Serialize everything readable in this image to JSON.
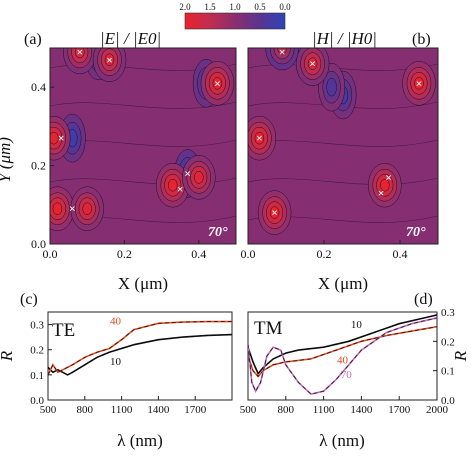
{
  "chart_data": [
    {
      "type": "heatmap",
      "panel_label": "(a)",
      "title": "|E| / |E0|",
      "angle_label": "70°",
      "xlabel": "X (μm)",
      "ylabel": "Y (μm)",
      "xlim": [
        0.0,
        0.5
      ],
      "ylim": [
        0.0,
        0.5
      ],
      "xticks": [
        "0.0",
        "0.2",
        "0.4"
      ],
      "yticks": [
        "0.0",
        "0.2",
        "0.4"
      ],
      "markers": [
        {
          "x": 0.08,
          "y": 0.49
        },
        {
          "x": 0.16,
          "y": 0.47
        },
        {
          "x": 0.45,
          "y": 0.41
        },
        {
          "x": 0.03,
          "y": 0.27
        },
        {
          "x": 0.37,
          "y": 0.18
        },
        {
          "x": 0.35,
          "y": 0.14
        },
        {
          "x": 0.06,
          "y": 0.09
        }
      ],
      "hotspots": [
        {
          "x": 0.08,
          "y": 0.49,
          "level": 1.8
        },
        {
          "x": 0.16,
          "y": 0.47,
          "level": 1.8
        },
        {
          "x": 0.45,
          "y": 0.41,
          "level": 2.0
        },
        {
          "x": 0.01,
          "y": 0.27,
          "level": 2.0
        },
        {
          "x": 0.02,
          "y": 0.09,
          "level": 2.0
        },
        {
          "x": 0.1,
          "y": 0.09,
          "level": 1.9
        },
        {
          "x": 0.33,
          "y": 0.15,
          "level": 2.0
        },
        {
          "x": 0.4,
          "y": 0.17,
          "level": 1.9
        }
      ],
      "coldspots": [
        {
          "x": 0.06,
          "y": 0.27,
          "level": 0.2
        },
        {
          "x": 0.37,
          "y": 0.18,
          "level": 0.1
        },
        {
          "x": 0.13,
          "y": 0.48,
          "level": 0.3
        },
        {
          "x": 0.42,
          "y": 0.41,
          "level": 0.2
        }
      ]
    },
    {
      "type": "heatmap",
      "panel_label": "(b)",
      "title": "|H| / |H0|",
      "angle_label": "70°",
      "xlabel": "X (μm)",
      "xlim": [
        0.0,
        0.5
      ],
      "ylim": [
        0.0,
        0.5
      ],
      "xticks": [
        "0.0",
        "0.2",
        "0.4"
      ],
      "markers": [
        {
          "x": 0.09,
          "y": 0.49
        },
        {
          "x": 0.17,
          "y": 0.46
        },
        {
          "x": 0.45,
          "y": 0.41
        },
        {
          "x": 0.03,
          "y": 0.27
        },
        {
          "x": 0.37,
          "y": 0.17
        },
        {
          "x": 0.35,
          "y": 0.13
        },
        {
          "x": 0.07,
          "y": 0.08
        }
      ],
      "hotspots": [
        {
          "x": 0.17,
          "y": 0.46,
          "level": 1.8
        },
        {
          "x": 0.45,
          "y": 0.41,
          "level": 2.0
        },
        {
          "x": 0.03,
          "y": 0.27,
          "level": 2.0
        },
        {
          "x": 0.36,
          "y": 0.15,
          "level": 2.0
        },
        {
          "x": 0.07,
          "y": 0.08,
          "level": 2.0
        },
        {
          "x": 0.09,
          "y": 0.5,
          "level": 1.5
        }
      ],
      "coldspots": [
        {
          "x": 0.25,
          "y": 0.38,
          "level": 0.3
        },
        {
          "x": 0.22,
          "y": 0.4,
          "level": 0.4
        }
      ]
    },
    {
      "type": "line",
      "panel_label": "(c)",
      "inset_label": "TE",
      "xlabel": "λ (nm)",
      "ylabel": "R",
      "xlim": [
        500,
        2000
      ],
      "ylim": [
        0,
        0.35
      ],
      "xticks": [
        "500",
        "800",
        "1100",
        "1400",
        "1700"
      ],
      "yticks": [
        "0.0",
        "0.1",
        "0.2",
        "0.3"
      ],
      "series": [
        {
          "name": "10",
          "x": [
            500,
            540,
            580,
            620,
            660,
            700,
            800,
            900,
            1000,
            1200,
            1400,
            1600,
            1800,
            2000
          ],
          "values": [
            0.13,
            0.11,
            0.12,
            0.11,
            0.1,
            0.11,
            0.14,
            0.17,
            0.19,
            0.22,
            0.24,
            0.25,
            0.257,
            0.26
          ]
        },
        {
          "name": "40",
          "x": [
            500,
            540,
            580,
            620,
            660,
            700,
            800,
            900,
            1000,
            1100,
            1200,
            1400,
            1600,
            1800,
            2000
          ],
          "values": [
            0.1,
            0.14,
            0.11,
            0.12,
            0.13,
            0.14,
            0.17,
            0.19,
            0.205,
            0.24,
            0.28,
            0.305,
            0.31,
            0.312,
            0.312
          ]
        }
      ]
    },
    {
      "type": "line",
      "panel_label": "(d)",
      "inset_label": "TM",
      "xlabel": "λ (nm)",
      "ylabel": "R",
      "xlim": [
        500,
        2000
      ],
      "ylim": [
        0,
        0.3
      ],
      "xticks": [
        "500",
        "800",
        "1100",
        "1400",
        "1700",
        "2000"
      ],
      "yticks": [
        "0.0",
        "0.1",
        "0.2",
        "0.3"
      ],
      "series": [
        {
          "name": "10",
          "x": [
            500,
            540,
            580,
            620,
            700,
            800,
            900,
            1100,
            1300,
            1500,
            1700,
            1900,
            2000
          ],
          "values": [
            0.18,
            0.13,
            0.09,
            0.11,
            0.14,
            0.16,
            0.17,
            0.18,
            0.2,
            0.23,
            0.26,
            0.28,
            0.29
          ]
        },
        {
          "name": "40",
          "x": [
            500,
            540,
            580,
            620,
            700,
            800,
            1000,
            1200,
            1400,
            1600,
            1800,
            2000
          ],
          "values": [
            0.15,
            0.1,
            0.08,
            0.1,
            0.12,
            0.13,
            0.14,
            0.17,
            0.2,
            0.22,
            0.235,
            0.25
          ]
        },
        {
          "name": "70",
          "x": [
            500,
            530,
            560,
            600,
            650,
            700,
            760,
            800,
            900,
            1000,
            1100,
            1200,
            1300,
            1400,
            1500,
            1600,
            1800,
            2000
          ],
          "values": [
            0.19,
            0.06,
            0.03,
            0.06,
            0.15,
            0.18,
            0.17,
            0.12,
            0.06,
            0.02,
            0.03,
            0.07,
            0.12,
            0.17,
            0.2,
            0.23,
            0.26,
            0.28
          ]
        }
      ]
    }
  ],
  "colorbar": {
    "ticks": [
      "2.0",
      "1.5",
      "1.0",
      "0.5",
      "0.0"
    ],
    "colors": [
      "#e8232e",
      "#c02d4f",
      "#8a2f6f",
      "#5a3390",
      "#2d44b8"
    ]
  },
  "series_colors": {
    "10": "#111111",
    "40": "#e24a1f",
    "70": "#c26ab5"
  }
}
